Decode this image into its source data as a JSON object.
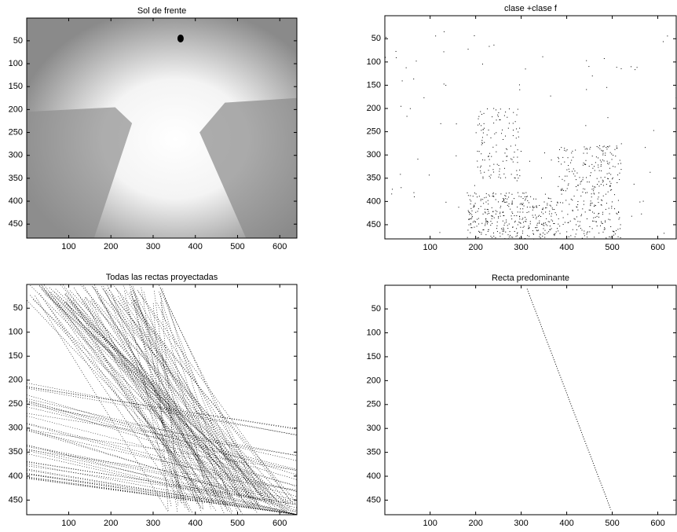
{
  "chart_data": [
    {
      "type": "image",
      "title": "Sol de frente",
      "xlim": [
        0.5,
        640.5
      ],
      "ylim": [
        0.5,
        480.5
      ],
      "y_reversed": true,
      "xticks": [
        100,
        200,
        300,
        400,
        500,
        600
      ],
      "yticks": [
        50,
        100,
        150,
        200,
        250,
        300,
        350,
        400,
        450
      ]
    },
    {
      "type": "image",
      "title": "clase +clase f",
      "xlim": [
        0.5,
        640.5
      ],
      "ylim": [
        0.5,
        480.5
      ],
      "y_reversed": true,
      "xticks": [
        100,
        200,
        300,
        400,
        500,
        600
      ],
      "yticks": [
        50,
        100,
        150,
        200,
        250,
        300,
        350,
        400,
        450
      ]
    },
    {
      "type": "image",
      "title": "Todas las rectas proyectadas",
      "xlim": [
        0.5,
        640.5
      ],
      "ylim": [
        0.5,
        480.5
      ],
      "y_reversed": true,
      "xticks": [
        100,
        200,
        300,
        400,
        500,
        600
      ],
      "yticks": [
        50,
        100,
        150,
        200,
        250,
        300,
        350,
        400,
        450
      ]
    },
    {
      "type": "line",
      "title": "Recta predominante",
      "xlim": [
        0.5,
        640.5
      ],
      "ylim": [
        0.5,
        480.5
      ],
      "y_reversed": true,
      "xticks": [
        100,
        200,
        300,
        400,
        500,
        600
      ],
      "yticks": [
        50,
        100,
        150,
        200,
        250,
        300,
        350,
        400,
        450
      ],
      "x": [
        313,
        497
      ],
      "values": [
        8,
        470
      ],
      "color": "#000000"
    }
  ]
}
